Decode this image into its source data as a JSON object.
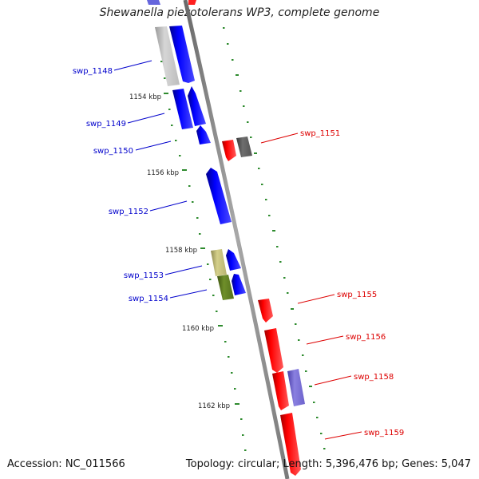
{
  "title": "Shewanella piezotolerans WP3, complete genome",
  "accession_text": "Accession: NC_011566",
  "topology_text": "Topology: circular; Length: 5,396,476 bp; Genes: 5,047",
  "colors": {
    "forward_gene": "#0000ff",
    "reverse_gene": "#ff0000",
    "backbone": "#8c8c8c",
    "tick": "#2e8b2e"
  },
  "scale_labels": [
    "1154 kbp",
    "1156 kbp",
    "1158 kbp",
    "1160 kbp",
    "1162 kbp"
  ],
  "gene_labels": [
    {
      "name": "swp_1148",
      "strand": "forward"
    },
    {
      "name": "swp_1149",
      "strand": "forward"
    },
    {
      "name": "swp_1150",
      "strand": "forward"
    },
    {
      "name": "swp_1152",
      "strand": "forward"
    },
    {
      "name": "swp_1153",
      "strand": "forward"
    },
    {
      "name": "swp_1154",
      "strand": "forward"
    },
    {
      "name": "swp_1151",
      "strand": "reverse"
    },
    {
      "name": "swp_1155",
      "strand": "reverse"
    },
    {
      "name": "swp_1156",
      "strand": "reverse"
    },
    {
      "name": "swp_1158",
      "strand": "reverse"
    },
    {
      "name": "swp_1159",
      "strand": "reverse"
    }
  ]
}
